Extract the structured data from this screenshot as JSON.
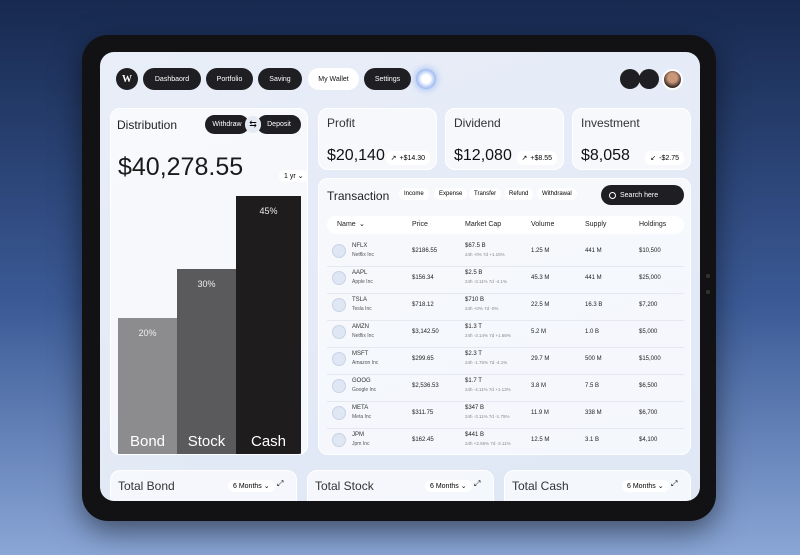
{
  "nav": {
    "items": [
      "Dashbaord",
      "Portfolio",
      "Saving",
      "My Wallet",
      "Settings"
    ],
    "active": 3
  },
  "distribution": {
    "title": "Distribution",
    "toggle": [
      "Withdraw",
      "Deposit"
    ],
    "total": "$40,278.55",
    "period": "1 yr",
    "bars": [
      {
        "name": "Bond",
        "value": 20,
        "label": "20%",
        "color": "#8c8c8e"
      },
      {
        "name": "Stock",
        "value": 30,
        "label": "30%",
        "color": "#5a5a5c"
      },
      {
        "name": "Cash",
        "value": 45,
        "label": "45%",
        "color": "#1e1c1d"
      }
    ]
  },
  "stats": [
    {
      "title": "Profit",
      "value": "$20,140",
      "change": "+$14.30",
      "dir": "up"
    },
    {
      "title": "Dividend",
      "value": "$12,080",
      "change": "+$8.55",
      "dir": "up"
    },
    {
      "title": "Investment",
      "value": "$8,058",
      "change": "-$2.75",
      "dir": "down"
    }
  ],
  "transaction": {
    "title": "Transaction",
    "filters": [
      "Income",
      "Expense",
      "Transfer",
      "Refund",
      "Withdrawal"
    ],
    "search": "Search here",
    "columns": [
      "Name",
      "Price",
      "Market Cap",
      "Volume",
      "Supply",
      "Holdings"
    ],
    "rows": [
      [
        "NFLX",
        "Netflix Inc",
        "$2186.55",
        "$67.5 B",
        "24h -0%  7d +1.15%",
        "1.25 M",
        "441 M",
        "$10,500"
      ],
      [
        "AAPL",
        "Apple Inc",
        "$156.34",
        "$2.5 B",
        "24h -3.11%  7d -4.1%",
        "45.3 M",
        "441 M",
        "$25,000"
      ],
      [
        "TSLA",
        "Tesla Inc",
        "$718.12",
        "$710 B",
        "24h +0%  7d -0%",
        "22.5 M",
        "16.3 B",
        "$7,200"
      ],
      [
        "AMZN",
        "Netflix Inc",
        "$3,142.50",
        "$1.3 T",
        "24h -3.14%  7d +1.66%",
        "5.2 M",
        "1.0 B",
        "$5,000"
      ],
      [
        "MSFT",
        "Amazon Inc",
        "$299.65",
        "$2.3 T",
        "24h -1.75%  7d -4.1%",
        "29.7 M",
        "500 M",
        "$15,000"
      ],
      [
        "GOOG",
        "Google Inc",
        "$2,536.53",
        "$1.7 T",
        "24h -4.11%  7d +1.13%",
        "3.8 M",
        "7.5 B",
        "$6,500"
      ],
      [
        "META",
        "Meta Inc",
        "$311.75",
        "$347 B",
        "24h -3.11%  7d -1.75%",
        "11.9 M",
        "338 M",
        "$6,700"
      ],
      [
        "JPM",
        "Jpm Inc",
        "$162.45",
        "$441 B",
        "24h +2.55%  7d -3.11%",
        "12.5 M",
        "3.1 B",
        "$4,100"
      ]
    ]
  },
  "totals": [
    {
      "title": "Total Bond",
      "period": "6 Months"
    },
    {
      "title": "Total Stock",
      "period": "6 Months"
    },
    {
      "title": "Total Cash",
      "period": "6 Months"
    }
  ]
}
